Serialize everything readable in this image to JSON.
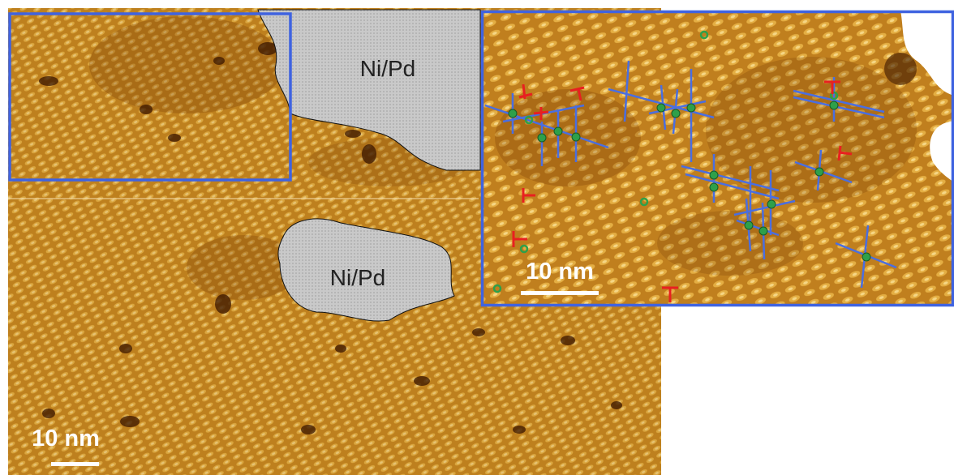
{
  "main_image": {
    "island_labels": [
      "Ni/Pd",
      "Ni/Pd"
    ],
    "scale_bar": "10 nm"
  },
  "inset": {
    "scale_bar": "10 nm"
  }
}
